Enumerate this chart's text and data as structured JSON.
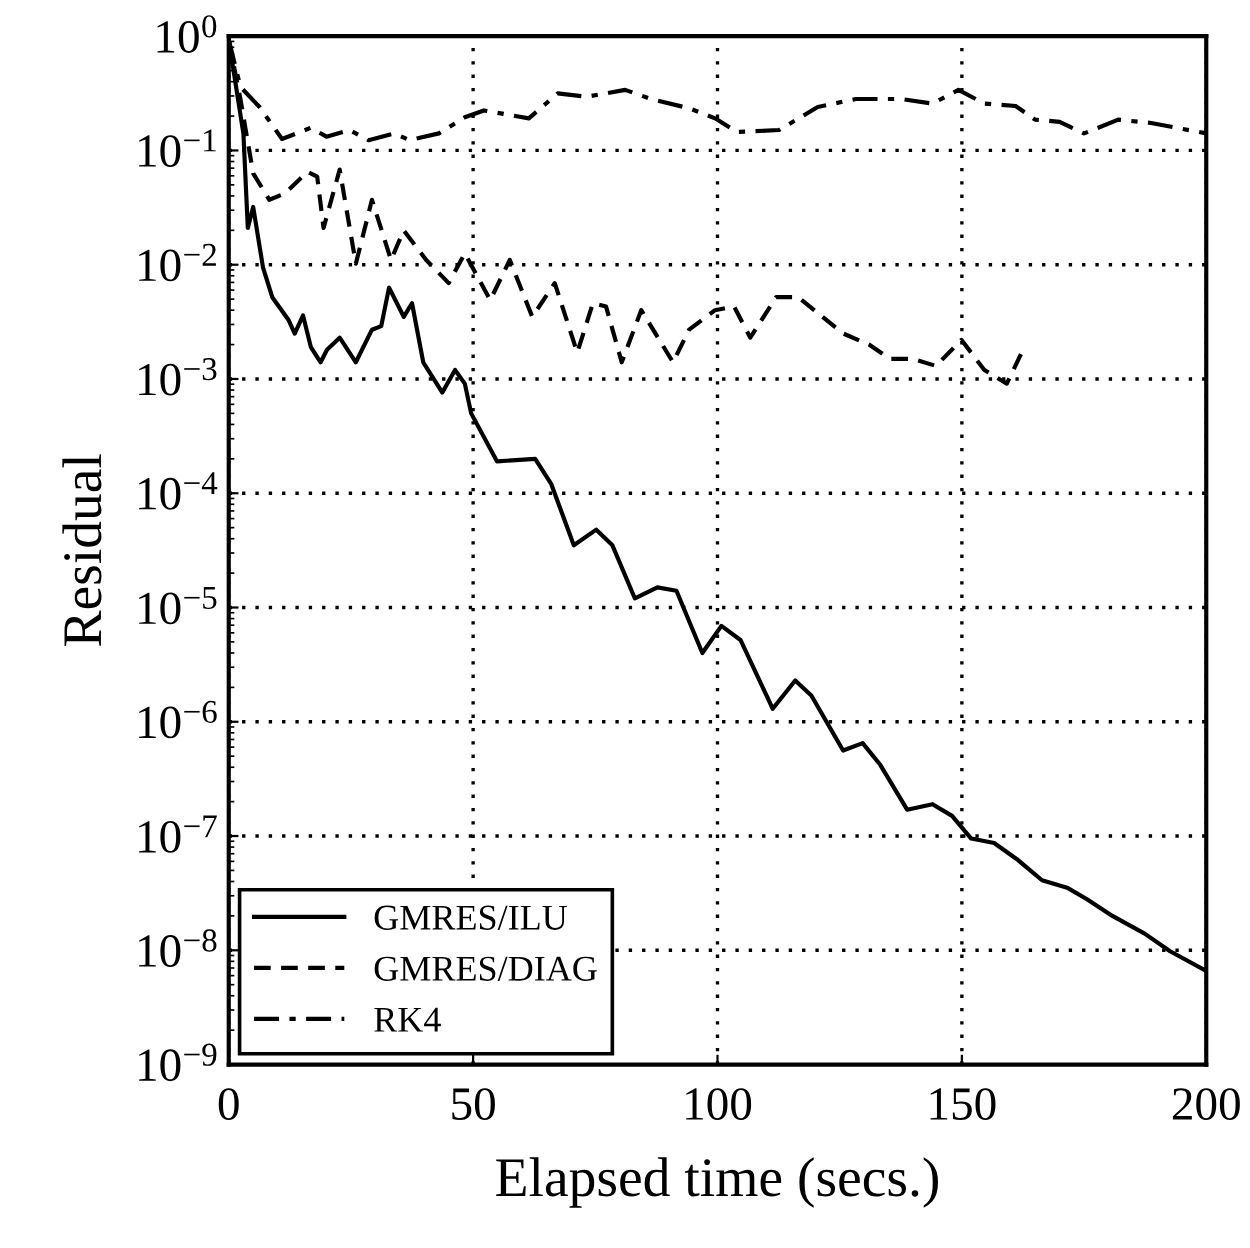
{
  "chart_data": {
    "type": "line",
    "xlabel": "Elapsed time (secs.)",
    "ylabel": "Residual",
    "log": "y",
    "grid": true,
    "legend": "bottom left",
    "marker": "none",
    "xlim": [
      0,
      200
    ],
    "xticks": [
      0,
      50,
      100,
      150,
      200
    ],
    "ylim": [
      1e-09,
      1
    ],
    "yticks": [
      {
        "value": 1,
        "label": "10$^{0}$"
      },
      {
        "value": 0.1,
        "label": "10$^{−1}$"
      },
      {
        "value": 0.01,
        "label": "10$^{−2}$"
      },
      {
        "value": 0.001,
        "label": "10$^{−3}$"
      },
      {
        "value": 0.0001,
        "label": "10$^{−4}$"
      },
      {
        "value": 1e-05,
        "label": "10$^{−5}$"
      },
      {
        "value": 1e-06,
        "label": "10$^{−6}$"
      },
      {
        "value": 1e-07,
        "label": "10$^{−7}$"
      },
      {
        "value": 1e-08,
        "label": "10$^{−8}$"
      },
      {
        "value": 1e-09,
        "label": "10$^{−9}$"
      }
    ],
    "series": [
      {
        "name": "GMRES/ILU",
        "color": "#000000",
        "line_style": "solid",
        "x": [
          0,
          3,
          3.9,
          5,
          7,
          8.9,
          12.2,
          13.5,
          15.2,
          16.8,
          18.8,
          20.1,
          22.7,
          26,
          29.3,
          31.2,
          32.8,
          35.8,
          37.5,
          39.8,
          43.7,
          46.3,
          48.3,
          49.6,
          54.9,
          62.7,
          66,
          70.6,
          75.2,
          78.5,
          83.1,
          87.7,
          91.6,
          96.9,
          100.8,
          104.7,
          111.3,
          115.9,
          119.2,
          125.7,
          129.7,
          133.3,
          138.8,
          144,
          148,
          151.9,
          156.6,
          161.2,
          166.4,
          171.7,
          175.6,
          180.8,
          187.4,
          192.6,
          200
        ],
        "values": [
          0.93,
          0.14,
          0.021,
          0.032,
          0.0095,
          0.0052,
          0.0033,
          0.0025,
          0.0036,
          0.0019,
          0.0014,
          0.0018,
          0.0023,
          0.0014,
          0.0027,
          0.0029,
          0.0063,
          0.0035,
          0.0046,
          0.0014,
          0.00076,
          0.0012,
          0.00091,
          0.0005,
          0.00019,
          0.0002,
          0.00012,
          3.5e-05,
          4.8e-05,
          3.5e-05,
          1.2e-05,
          1.5e-05,
          1.4e-05,
          4e-06,
          6.9e-06,
          5.2e-06,
          1.3e-06,
          2.3e-06,
          1.7e-06,
          5.6e-07,
          6.5e-07,
          4.2e-07,
          1.7e-07,
          1.9e-07,
          1.5e-07,
          9.5e-08,
          8.7e-08,
          6.3e-08,
          4.1e-08,
          3.5e-08,
          2.8e-08,
          2e-08,
          1.4e-08,
          9.8e-09,
          6.6e-09
        ]
      },
      {
        "name": "GMRES/DIAG",
        "color": "#000000",
        "line_style": "dashed",
        "x": [
          0,
          2.4,
          5,
          8.3,
          11.5,
          16.1,
          18.1,
          19.4,
          22.7,
          26,
          29.3,
          33.2,
          35.8,
          40.4,
          45,
          48.3,
          53.5,
          57.5,
          62.1,
          66.7,
          71.3,
          74.5,
          77.2,
          80.4,
          84.4,
          90.9,
          94.2,
          99.5,
          103.4,
          106.7,
          112,
          116.5,
          125.7,
          131,
          135.3,
          140,
          144.7,
          149.9,
          154.6,
          159.2,
          162.5
        ],
        "values": [
          0.93,
          0.28,
          0.063,
          0.037,
          0.042,
          0.065,
          0.059,
          0.021,
          0.068,
          0.0102,
          0.037,
          0.011,
          0.02,
          0.011,
          0.0069,
          0.0126,
          0.0049,
          0.011,
          0.0035,
          0.0069,
          0.0017,
          0.0046,
          0.0043,
          0.0014,
          0.004,
          0.0014,
          0.0027,
          0.004,
          0.0043,
          0.0023,
          0.0052,
          0.0052,
          0.0025,
          0.002,
          0.0015,
          0.0015,
          0.0013,
          0.0022,
          0.0012,
          0.00091,
          0.0018
        ]
      },
      {
        "name": "RK4",
        "color": "#000000",
        "line_style": "dashdot",
        "x": [
          0,
          2.4,
          6.3,
          10.9,
          16.8,
          20,
          24.7,
          28.6,
          33.9,
          37,
          43,
          48.3,
          52.2,
          61.4,
          67.3,
          73.2,
          81.1,
          86.4,
          94.2,
          99.5,
          104,
          112.6,
          120.5,
          128.3,
          137.5,
          144,
          149.3,
          154.6,
          161,
          165,
          170,
          175,
          182,
          188.7,
          200
        ],
        "values": [
          0.93,
          0.36,
          0.24,
          0.126,
          0.158,
          0.132,
          0.151,
          0.123,
          0.141,
          0.123,
          0.141,
          0.195,
          0.224,
          0.191,
          0.316,
          0.295,
          0.339,
          0.282,
          0.234,
          0.191,
          0.145,
          0.151,
          0.24,
          0.282,
          0.282,
          0.257,
          0.339,
          0.257,
          0.245,
          0.186,
          0.178,
          0.141,
          0.186,
          0.174,
          0.141
        ]
      }
    ]
  }
}
